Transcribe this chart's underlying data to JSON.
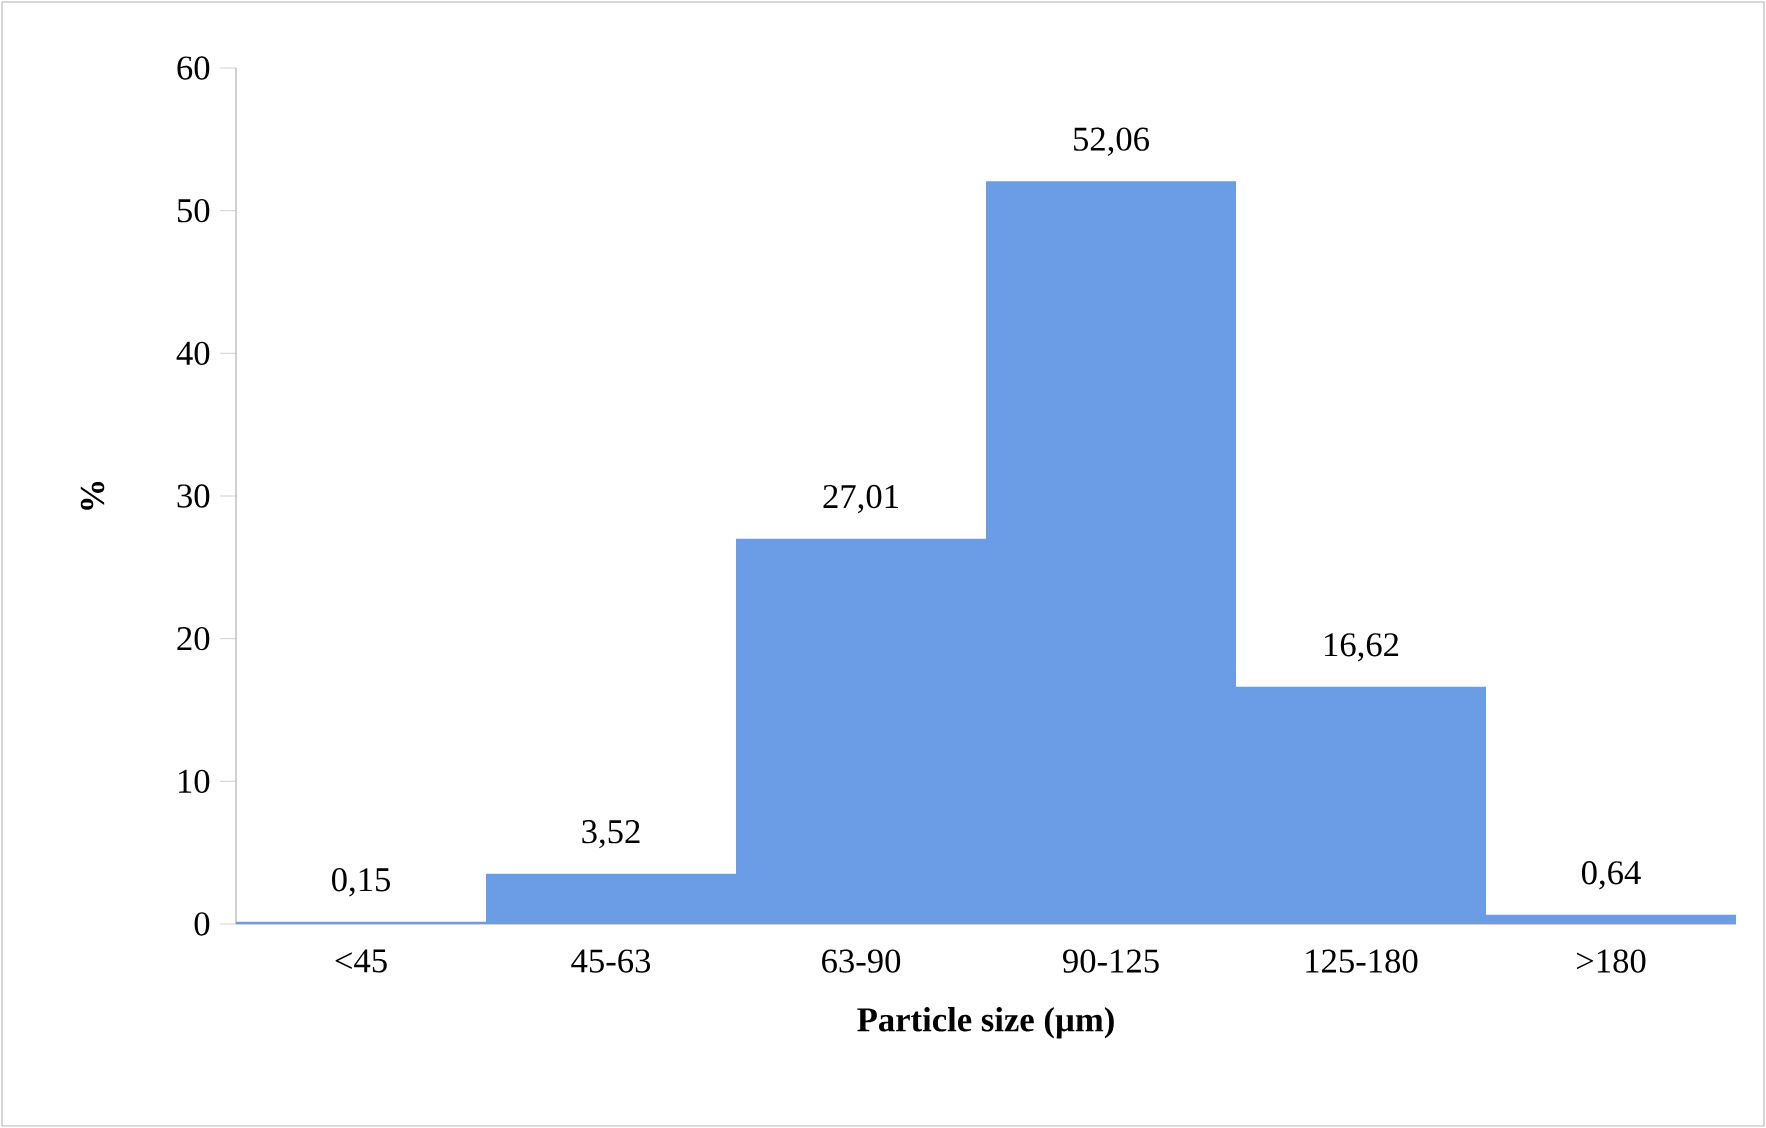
{
  "chart_data": {
    "type": "bar",
    "xlabel": "Particle size (µm)",
    "ylabel": "%",
    "categories": [
      "<45",
      "45-63",
      "63-90",
      "90-125",
      "125-180",
      ">180"
    ],
    "values": [
      0.15,
      3.52,
      27.01,
      52.06,
      16.62,
      0.64
    ],
    "value_labels": [
      "0,15",
      "3,52",
      "27,01",
      "52,06",
      "16,62",
      "0,64"
    ],
    "color": "#6b9de6",
    "ylim": [
      0,
      60
    ],
    "yticks": [
      0,
      10,
      20,
      30,
      40,
      50,
      60
    ],
    "grid": false
  }
}
